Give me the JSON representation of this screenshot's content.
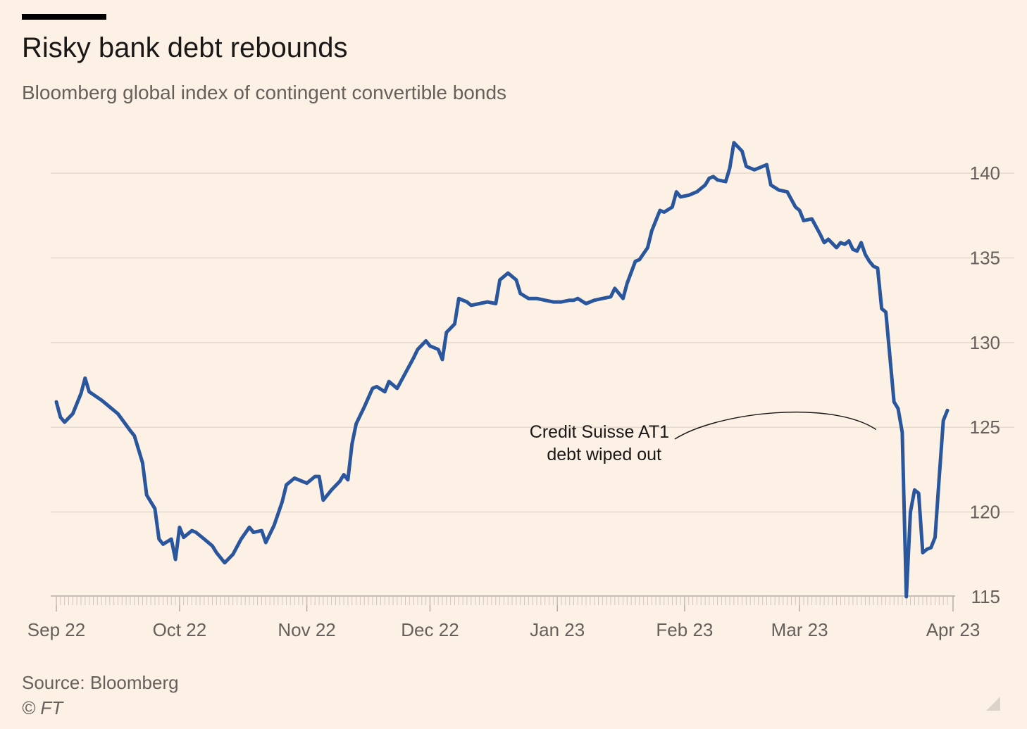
{
  "header": {
    "title": "Risky bank debt rebounds",
    "subtitle": "Bloomberg global index of contingent convertible bonds"
  },
  "footer": {
    "source": "Source: Bloomberg",
    "credit": "© FT"
  },
  "colors": {
    "background": "#fdf1e6",
    "line": "#2a569e",
    "grid": "#e6d9ce",
    "text": "#66605c"
  },
  "chart_data": {
    "type": "line",
    "title": "Risky bank debt rebounds",
    "subtitle": "Bloomberg global index of contingent convertible bonds",
    "xlabel": "",
    "ylabel": "",
    "x_ticks": [
      "Sep 22",
      "Oct 22",
      "Nov 22",
      "Dec 22",
      "Jan 23",
      "Feb 23",
      "Mar 23",
      "Apr 23"
    ],
    "x_range": [
      "2022-09-01",
      "2023-04-06"
    ],
    "ylim": [
      115,
      141
    ],
    "y_ticks": [
      115,
      120,
      125,
      130,
      135,
      140
    ],
    "y_axis_position": "right",
    "grid": true,
    "annotation": {
      "text_lines": [
        "Credit Suisse AT1",
        "debt wiped out"
      ],
      "x": "2023-03-20",
      "y": 124.7
    },
    "series": [
      {
        "values": [
          [
            "2022-09-01",
            126.5
          ],
          [
            "2022-09-02",
            125.6
          ],
          [
            "2022-09-03",
            125.3
          ],
          [
            "2022-09-05",
            125.8
          ],
          [
            "2022-09-07",
            127.0
          ],
          [
            "2022-09-08",
            127.9
          ],
          [
            "2022-09-09",
            127.1
          ],
          [
            "2022-09-12",
            126.6
          ],
          [
            "2022-09-13",
            126.4
          ],
          [
            "2022-09-15",
            126.0
          ],
          [
            "2022-09-16",
            125.8
          ],
          [
            "2022-09-19",
            124.8
          ],
          [
            "2022-09-20",
            124.5
          ],
          [
            "2022-09-22",
            122.9
          ],
          [
            "2022-09-23",
            121.0
          ],
          [
            "2022-09-25",
            120.2
          ],
          [
            "2022-09-26",
            118.4
          ],
          [
            "2022-09-27",
            118.1
          ],
          [
            "2022-09-29",
            118.4
          ],
          [
            "2022-09-30",
            117.2
          ],
          [
            "2022-10-01",
            119.1
          ],
          [
            "2022-10-02",
            118.5
          ],
          [
            "2022-10-04",
            118.9
          ],
          [
            "2022-10-05",
            118.8
          ],
          [
            "2022-10-07",
            118.4
          ],
          [
            "2022-10-09",
            118.0
          ],
          [
            "2022-10-10",
            117.6
          ],
          [
            "2022-10-12",
            117.0
          ],
          [
            "2022-10-14",
            117.5
          ],
          [
            "2022-10-16",
            118.4
          ],
          [
            "2022-10-18",
            119.1
          ],
          [
            "2022-10-19",
            118.8
          ],
          [
            "2022-10-21",
            118.9
          ],
          [
            "2022-10-22",
            118.2
          ],
          [
            "2022-10-24",
            119.2
          ],
          [
            "2022-10-26",
            120.6
          ],
          [
            "2022-10-27",
            121.6
          ],
          [
            "2022-10-29",
            122.0
          ],
          [
            "2022-10-31",
            121.8
          ],
          [
            "2022-11-01",
            121.7
          ],
          [
            "2022-11-03",
            122.1
          ],
          [
            "2022-11-04",
            122.1
          ],
          [
            "2022-11-05",
            120.7
          ],
          [
            "2022-11-07",
            121.3
          ],
          [
            "2022-11-09",
            121.8
          ],
          [
            "2022-11-10",
            122.2
          ],
          [
            "2022-11-11",
            121.9
          ],
          [
            "2022-11-12",
            124.0
          ],
          [
            "2022-11-13",
            125.2
          ],
          [
            "2022-11-15",
            126.2
          ],
          [
            "2022-11-17",
            127.3
          ],
          [
            "2022-11-18",
            127.4
          ],
          [
            "2022-11-20",
            127.1
          ],
          [
            "2022-11-21",
            127.7
          ],
          [
            "2022-11-23",
            127.3
          ],
          [
            "2022-11-25",
            128.2
          ],
          [
            "2022-11-27",
            129.1
          ],
          [
            "2022-11-28",
            129.6
          ],
          [
            "2022-11-30",
            130.1
          ],
          [
            "2022-12-01",
            129.8
          ],
          [
            "2022-12-03",
            129.6
          ],
          [
            "2022-12-04",
            129.0
          ],
          [
            "2022-12-05",
            130.6
          ],
          [
            "2022-12-07",
            131.1
          ],
          [
            "2022-12-08",
            132.6
          ],
          [
            "2022-12-10",
            132.4
          ],
          [
            "2022-12-11",
            132.2
          ],
          [
            "2022-12-13",
            132.3
          ],
          [
            "2022-12-15",
            132.4
          ],
          [
            "2022-12-17",
            132.3
          ],
          [
            "2022-12-18",
            133.7
          ],
          [
            "2022-12-20",
            134.1
          ],
          [
            "2022-12-22",
            133.7
          ],
          [
            "2022-12-23",
            132.9
          ],
          [
            "2022-12-25",
            132.6
          ],
          [
            "2022-12-27",
            132.6
          ],
          [
            "2022-12-29",
            132.5
          ],
          [
            "2022-12-31",
            132.4
          ],
          [
            "2023-01-02",
            132.4
          ],
          [
            "2023-01-04",
            132.5
          ],
          [
            "2023-01-05",
            132.5
          ],
          [
            "2023-01-06",
            132.6
          ],
          [
            "2023-01-08",
            132.3
          ],
          [
            "2023-01-10",
            132.5
          ],
          [
            "2023-01-12",
            132.6
          ],
          [
            "2023-01-14",
            132.7
          ],
          [
            "2023-01-15",
            133.2
          ],
          [
            "2023-01-17",
            132.6
          ],
          [
            "2023-01-18",
            133.5
          ],
          [
            "2023-01-20",
            134.8
          ],
          [
            "2023-01-21",
            134.9
          ],
          [
            "2023-01-23",
            135.6
          ],
          [
            "2023-01-24",
            136.6
          ],
          [
            "2023-01-26",
            137.8
          ],
          [
            "2023-01-27",
            137.7
          ],
          [
            "2023-01-29",
            138.0
          ],
          [
            "2023-01-30",
            138.9
          ],
          [
            "2023-01-31",
            138.6
          ],
          [
            "2023-02-02",
            138.7
          ],
          [
            "2023-02-04",
            138.9
          ],
          [
            "2023-02-06",
            139.3
          ],
          [
            "2023-02-07",
            139.7
          ],
          [
            "2023-02-08",
            139.8
          ],
          [
            "2023-02-09",
            139.6
          ],
          [
            "2023-02-11",
            139.5
          ],
          [
            "2023-02-12",
            140.3
          ],
          [
            "2023-02-13",
            141.8
          ],
          [
            "2023-02-15",
            141.3
          ],
          [
            "2023-02-16",
            140.4
          ],
          [
            "2023-02-18",
            140.2
          ],
          [
            "2023-02-19",
            140.3
          ],
          [
            "2023-02-21",
            140.5
          ],
          [
            "2023-02-22",
            139.3
          ],
          [
            "2023-02-24",
            139.0
          ],
          [
            "2023-02-26",
            138.9
          ],
          [
            "2023-02-28",
            138.0
          ],
          [
            "2023-03-01",
            137.8
          ],
          [
            "2023-03-02",
            137.2
          ],
          [
            "2023-03-04",
            137.3
          ],
          [
            "2023-03-06",
            136.4
          ],
          [
            "2023-03-07",
            135.9
          ],
          [
            "2023-03-08",
            136.1
          ],
          [
            "2023-03-10",
            135.6
          ],
          [
            "2023-03-11",
            135.9
          ],
          [
            "2023-03-12",
            135.8
          ],
          [
            "2023-03-13",
            136.0
          ],
          [
            "2023-03-14",
            135.5
          ],
          [
            "2023-03-15",
            135.4
          ],
          [
            "2023-03-16",
            135.9
          ],
          [
            "2023-03-17",
            135.2
          ],
          [
            "2023-03-18",
            134.8
          ],
          [
            "2023-03-19",
            134.5
          ],
          [
            "2023-03-20",
            134.4
          ],
          [
            "2023-03-21",
            132.0
          ],
          [
            "2023-03-22",
            131.8
          ],
          [
            "2023-03-24",
            126.5
          ],
          [
            "2023-03-25",
            126.1
          ],
          [
            "2023-03-26",
            124.7
          ],
          [
            "2023-03-27",
            115.0
          ],
          [
            "2023-03-28",
            120.0
          ],
          [
            "2023-03-29",
            121.3
          ],
          [
            "2023-03-30",
            121.1
          ],
          [
            "2023-03-31",
            117.6
          ],
          [
            "2023-04-01",
            117.8
          ],
          [
            "2023-04-02",
            117.9
          ],
          [
            "2023-04-03",
            118.5
          ],
          [
            "2023-04-04",
            122.0
          ],
          [
            "2023-04-05",
            125.4
          ],
          [
            "2023-04-06",
            126.0
          ]
        ]
      }
    ]
  }
}
